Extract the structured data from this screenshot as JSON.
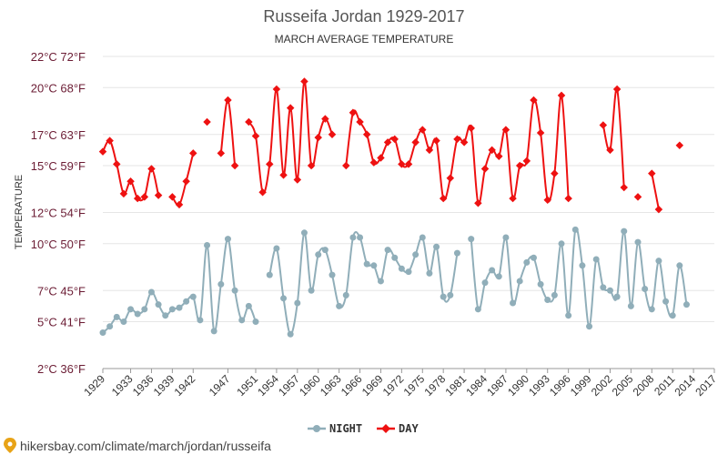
{
  "chart_data": {
    "type": "line",
    "title": "Russeifa Jordan 1929-2017",
    "subtitle": "MARCH AVERAGE TEMPERATURE",
    "ylabel": "TEMPERATURE",
    "ylim": [
      2,
      22
    ],
    "y_ticks": [
      {
        "value": 2,
        "label": "2°C 36°F"
      },
      {
        "value": 5,
        "label": "5°C 41°F"
      },
      {
        "value": 7,
        "label": "7°C 45°F"
      },
      {
        "value": 10,
        "label": "10°C 50°F"
      },
      {
        "value": 12,
        "label": "12°C 54°F"
      },
      {
        "value": 15,
        "label": "15°C 59°F"
      },
      {
        "value": 17,
        "label": "17°C 63°F"
      },
      {
        "value": 20,
        "label": "20°C 68°F"
      },
      {
        "value": 22,
        "label": "22°C 72°F"
      }
    ],
    "x_ticks": [
      "1929",
      "1933",
      "1936",
      "1939",
      "1942",
      "1947",
      "1951",
      "1954",
      "1957",
      "1960",
      "1963",
      "1966",
      "1969",
      "1972",
      "1975",
      "1978",
      "1981",
      "1984",
      "1987",
      "1990",
      "1993",
      "1996",
      "1999",
      "2002",
      "2005",
      "2008",
      "2011",
      "2014",
      "2017"
    ],
    "grid": true,
    "legend_position": "bottom",
    "series": [
      {
        "name": "NIGHT",
        "color": "#90aeb9",
        "marker": "circle",
        "points": [
          [
            1929,
            4.3
          ],
          [
            1930,
            4.7
          ],
          [
            1931,
            5.3
          ],
          [
            1932,
            5.0
          ],
          [
            1933,
            5.8
          ],
          [
            1934,
            5.5
          ],
          [
            1935,
            5.8
          ],
          [
            1936,
            6.9
          ],
          [
            1937,
            6.1
          ],
          [
            1938,
            5.4
          ],
          [
            1939,
            5.8
          ],
          [
            1940,
            5.9
          ],
          [
            1941,
            6.3
          ],
          [
            1942,
            6.6
          ],
          [
            1943,
            5.1
          ],
          [
            1944,
            9.9
          ],
          [
            1945,
            4.4
          ],
          [
            1946,
            7.4
          ],
          [
            1947,
            10.3
          ],
          [
            1948,
            7.0
          ],
          [
            1949,
            5.1
          ],
          [
            1950,
            6.0
          ],
          [
            1951,
            5.0
          ],
          null,
          [
            1953,
            8.0
          ],
          [
            1954,
            9.7
          ],
          [
            1955,
            6.5
          ],
          [
            1956,
            4.2
          ],
          [
            1957,
            6.2
          ],
          [
            1958,
            10.7
          ],
          [
            1959,
            7.0
          ],
          [
            1960,
            9.3
          ],
          [
            1961,
            9.6
          ],
          [
            1962,
            8.0
          ],
          [
            1963,
            6.0
          ],
          [
            1964,
            6.7
          ],
          [
            1965,
            10.4
          ],
          [
            1966,
            10.4
          ],
          [
            1967,
            8.7
          ],
          [
            1968,
            8.6
          ],
          [
            1969,
            7.6
          ],
          [
            1970,
            9.6
          ],
          [
            1971,
            9.1
          ],
          [
            1972,
            8.4
          ],
          [
            1973,
            8.2
          ],
          [
            1974,
            9.3
          ],
          [
            1975,
            10.4
          ],
          [
            1976,
            8.1
          ],
          [
            1977,
            9.8
          ],
          [
            1978,
            6.6
          ],
          [
            1979,
            6.7
          ],
          [
            1980,
            9.4
          ],
          null,
          [
            1982,
            10.3
          ],
          [
            1983,
            5.8
          ],
          [
            1984,
            7.5
          ],
          [
            1985,
            8.3
          ],
          [
            1986,
            7.9
          ],
          [
            1987,
            10.4
          ],
          [
            1988,
            6.2
          ],
          [
            1989,
            7.6
          ],
          [
            1990,
            8.8
          ],
          [
            1991,
            9.1
          ],
          [
            1992,
            7.4
          ],
          [
            1993,
            6.4
          ],
          [
            1994,
            6.7
          ],
          [
            1995,
            10.0
          ],
          [
            1996,
            5.4
          ],
          [
            1997,
            10.9
          ],
          [
            1998,
            8.6
          ],
          [
            1999,
            4.7
          ],
          [
            2000,
            9.0
          ],
          [
            2001,
            7.2
          ],
          [
            2002,
            7.0
          ],
          [
            2003,
            6.6
          ],
          [
            2004,
            10.8
          ],
          [
            2005,
            6.0
          ],
          [
            2006,
            10.1
          ],
          [
            2007,
            7.1
          ],
          [
            2008,
            5.8
          ],
          [
            2009,
            8.9
          ],
          [
            2010,
            6.3
          ],
          [
            2011,
            5.4
          ],
          [
            2012,
            8.6
          ],
          [
            2013,
            6.1
          ]
        ]
      },
      {
        "name": "DAY",
        "color": "#ee1111",
        "marker": "diamond",
        "points": [
          [
            1929,
            15.9
          ],
          [
            1930,
            16.6
          ],
          [
            1931,
            15.1
          ],
          [
            1932,
            13.2
          ],
          [
            1933,
            14.0
          ],
          [
            1934,
            12.9
          ],
          [
            1935,
            13.0
          ],
          [
            1936,
            14.8
          ],
          [
            1937,
            13.1
          ],
          null,
          [
            1939,
            13.0
          ],
          [
            1940,
            12.5
          ],
          [
            1941,
            14.0
          ],
          [
            1942,
            15.8
          ],
          null,
          [
            1944,
            17.8
          ],
          null,
          [
            1946,
            15.8
          ],
          [
            1947,
            19.2
          ],
          [
            1948,
            15.0
          ],
          null,
          [
            1950,
            17.8
          ],
          [
            1951,
            16.9
          ],
          [
            1952,
            13.3
          ],
          [
            1953,
            15.1
          ],
          [
            1954,
            19.9
          ],
          [
            1955,
            14.4
          ],
          [
            1956,
            18.7
          ],
          [
            1957,
            14.1
          ],
          [
            1958,
            20.4
          ],
          [
            1959,
            15.0
          ],
          [
            1960,
            16.8
          ],
          [
            1961,
            18.0
          ],
          [
            1962,
            17.0
          ],
          null,
          [
            1964,
            15.0
          ],
          [
            1965,
            18.4
          ],
          [
            1966,
            17.8
          ],
          [
            1967,
            17.0
          ],
          [
            1968,
            15.2
          ],
          [
            1969,
            15.5
          ],
          [
            1970,
            16.5
          ],
          [
            1971,
            16.7
          ],
          [
            1972,
            15.1
          ],
          [
            1973,
            15.1
          ],
          [
            1974,
            16.5
          ],
          [
            1975,
            17.3
          ],
          [
            1976,
            16.0
          ],
          [
            1977,
            16.6
          ],
          [
            1978,
            12.9
          ],
          [
            1979,
            14.2
          ],
          [
            1980,
            16.7
          ],
          [
            1981,
            16.5
          ],
          [
            1982,
            17.4
          ],
          [
            1983,
            12.6
          ],
          [
            1984,
            14.8
          ],
          [
            1985,
            16.0
          ],
          [
            1986,
            15.6
          ],
          [
            1987,
            17.3
          ],
          [
            1988,
            12.9
          ],
          [
            1989,
            15.0
          ],
          [
            1990,
            15.3
          ],
          [
            1991,
            19.2
          ],
          [
            1992,
            17.1
          ],
          [
            1993,
            12.8
          ],
          [
            1994,
            14.5
          ],
          [
            1995,
            19.5
          ],
          [
            1996,
            12.9
          ],
          null,
          [
            2001,
            17.6
          ],
          [
            2002,
            16.0
          ],
          [
            2003,
            19.9
          ],
          [
            2004,
            13.6
          ],
          null,
          [
            2006,
            13.0
          ],
          null,
          [
            2008,
            14.5
          ],
          [
            2009,
            12.2
          ],
          null,
          [
            2012,
            16.3
          ]
        ]
      }
    ]
  },
  "legend": {
    "night_label": "NIGHT",
    "day_label": "DAY"
  },
  "footer": {
    "url": "hikersbay.com/climate/march/jordan/russeifa"
  }
}
